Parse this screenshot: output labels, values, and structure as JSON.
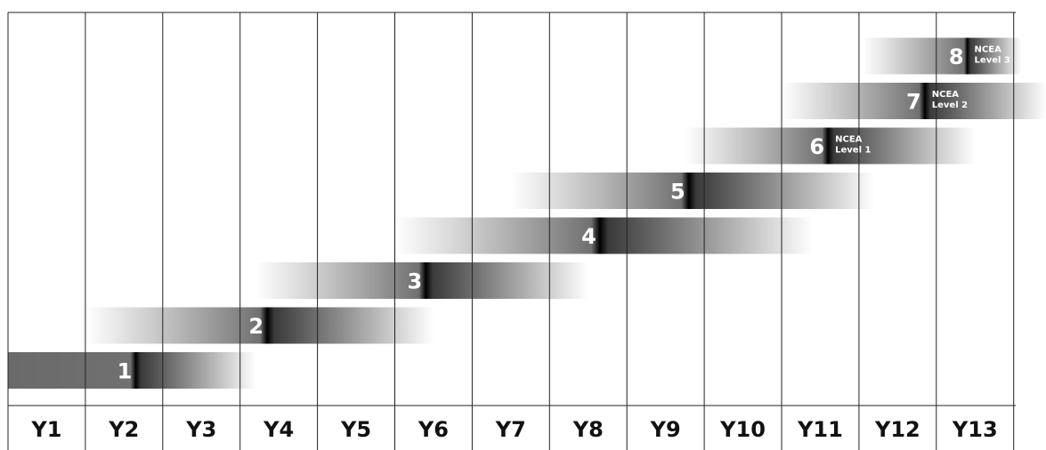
{
  "years": [
    "Y1",
    "Y2",
    "Y3",
    "Y4",
    "Y5",
    "Y6",
    "Y7",
    "Y8",
    "Y9",
    "Y10",
    "Y11",
    "Y12",
    "Y13"
  ],
  "levels": [
    {
      "label": "1",
      "start_year": 1.0,
      "end_year": 4.2,
      "peak_year": 2.65
    },
    {
      "label": "2",
      "start_year": 2.0,
      "end_year": 6.5,
      "peak_year": 4.35
    },
    {
      "label": "3",
      "start_year": 4.2,
      "end_year": 8.5,
      "peak_year": 6.4
    },
    {
      "label": "4",
      "start_year": 6.0,
      "end_year": 11.4,
      "peak_year": 8.65
    },
    {
      "label": "5",
      "start_year": 7.5,
      "end_year": 12.2,
      "peak_year": 9.8
    },
    {
      "label": "6",
      "start_year": 9.75,
      "end_year": 13.5,
      "peak_year": 11.6,
      "note": [
        "NCEA",
        "Level 1"
      ]
    },
    {
      "label": "7",
      "start_year": 11.0,
      "end_year": 14.5,
      "peak_year": 12.85,
      "note": [
        "NCEA",
        "Level 2"
      ]
    },
    {
      "label": "8",
      "start_year": 12.05,
      "end_year": 14.1,
      "peak_year": 13.4,
      "note": [
        "NCEA",
        "Level 3"
      ]
    }
  ],
  "colors": {
    "bar_peak": "#000000",
    "bar_edge": "#ffffff",
    "bar_mid": "#707070",
    "text": "#111111"
  }
}
